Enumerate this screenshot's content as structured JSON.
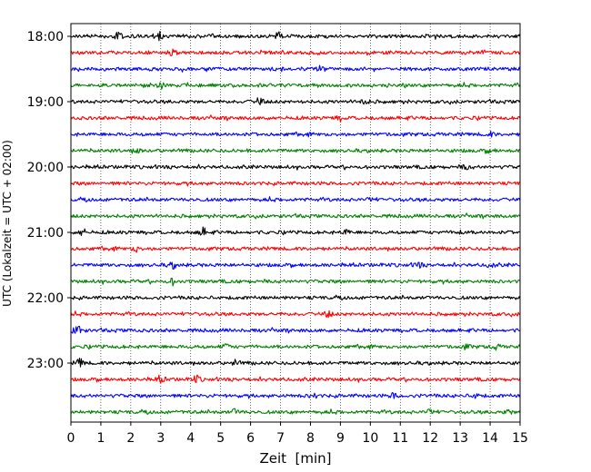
{
  "chart_data": {
    "type": "line",
    "xlabel": "Zeit  [min]",
    "ylabel": "UTC (Lokalzeit = UTC + 02:00)",
    "xlim": [
      0,
      15
    ],
    "x_ticks": [
      "0",
      "1",
      "2",
      "3",
      "4",
      "5",
      "6",
      "7",
      "8",
      "9",
      "10",
      "11",
      "12",
      "13",
      "14",
      "15"
    ],
    "y_tick_labels": [
      "18:00",
      "19:00",
      "20:00",
      "21:00",
      "22:00",
      "23:00"
    ],
    "grid": "vertical dotted at every minute",
    "trace_interval_minutes": 15,
    "trace_start_times": [
      "18:00",
      "18:15",
      "18:30",
      "18:45",
      "19:00",
      "19:15",
      "19:30",
      "19:45",
      "20:00",
      "20:15",
      "20:30",
      "20:45",
      "21:00",
      "21:15",
      "21:30",
      "21:45",
      "22:00",
      "22:15",
      "22:30",
      "22:45",
      "23:00",
      "23:15",
      "23:30",
      "23:45"
    ],
    "trace_color_cycle": [
      "#000000",
      "#ff0000",
      "#0000ff",
      "#008000"
    ],
    "series": [
      {
        "start": "18:00",
        "bursts": [
          [
            1.6,
            0.9
          ],
          [
            2.9,
            0.8
          ],
          [
            6.9,
            1.0
          ]
        ]
      },
      {
        "start": "18:15",
        "bursts": [
          [
            3.4,
            0.4
          ]
        ]
      },
      {
        "start": "18:30",
        "bursts": [
          [
            8.3,
            0.3
          ]
        ]
      },
      {
        "start": "18:45",
        "bursts": [
          [
            3.0,
            0.3
          ]
        ]
      },
      {
        "start": "19:00",
        "bursts": [
          [
            6.3,
            0.5
          ],
          [
            9.8,
            0.4
          ]
        ]
      },
      {
        "start": "19:15",
        "bursts": [
          [
            9.0,
            0.3
          ]
        ]
      },
      {
        "start": "19:30",
        "bursts": [
          [
            14.0,
            0.3
          ]
        ]
      },
      {
        "start": "19:45",
        "bursts": [
          [
            2.2,
            0.3
          ],
          [
            14.0,
            0.3
          ]
        ]
      },
      {
        "start": "20:00",
        "bursts": [
          [
            13.2,
            0.3
          ]
        ]
      },
      {
        "start": "20:15",
        "bursts": []
      },
      {
        "start": "20:30",
        "bursts": [
          [
            10.0,
            0.3
          ]
        ]
      },
      {
        "start": "20:45",
        "bursts": []
      },
      {
        "start": "21:00",
        "bursts": [
          [
            0.4,
            0.5
          ],
          [
            4.4,
            0.6
          ],
          [
            9.2,
            0.3
          ],
          [
            13.0,
            0.3
          ]
        ]
      },
      {
        "start": "21:15",
        "bursts": [
          [
            2.2,
            0.4
          ]
        ]
      },
      {
        "start": "21:30",
        "bursts": [
          [
            3.4,
            0.4
          ],
          [
            11.6,
            0.4
          ],
          [
            14.0,
            0.3
          ]
        ]
      },
      {
        "start": "21:45",
        "bursts": [
          [
            3.4,
            0.4
          ]
        ]
      },
      {
        "start": "22:00",
        "bursts": []
      },
      {
        "start": "22:15",
        "bursts": [
          [
            8.6,
            0.4
          ]
        ]
      },
      {
        "start": "22:30",
        "bursts": [
          [
            0.2,
            1.0
          ]
        ]
      },
      {
        "start": "22:45",
        "bursts": [
          [
            5.2,
            0.3
          ],
          [
            13.2,
            0.3
          ],
          [
            14.2,
            0.3
          ]
        ]
      },
      {
        "start": "23:00",
        "bursts": [
          [
            0.3,
            0.6
          ],
          [
            5.5,
            0.4
          ]
        ]
      },
      {
        "start": "23:15",
        "bursts": [
          [
            3.0,
            0.5
          ],
          [
            4.2,
            0.5
          ]
        ]
      },
      {
        "start": "23:30",
        "bursts": [
          [
            8.1,
            0.4
          ],
          [
            10.8,
            0.4
          ],
          [
            13.5,
            0.4
          ]
        ]
      },
      {
        "start": "23:45",
        "bursts": [
          [
            5.5,
            0.4
          ],
          [
            12.0,
            0.4
          ],
          [
            14.6,
            0.3
          ]
        ]
      }
    ]
  }
}
